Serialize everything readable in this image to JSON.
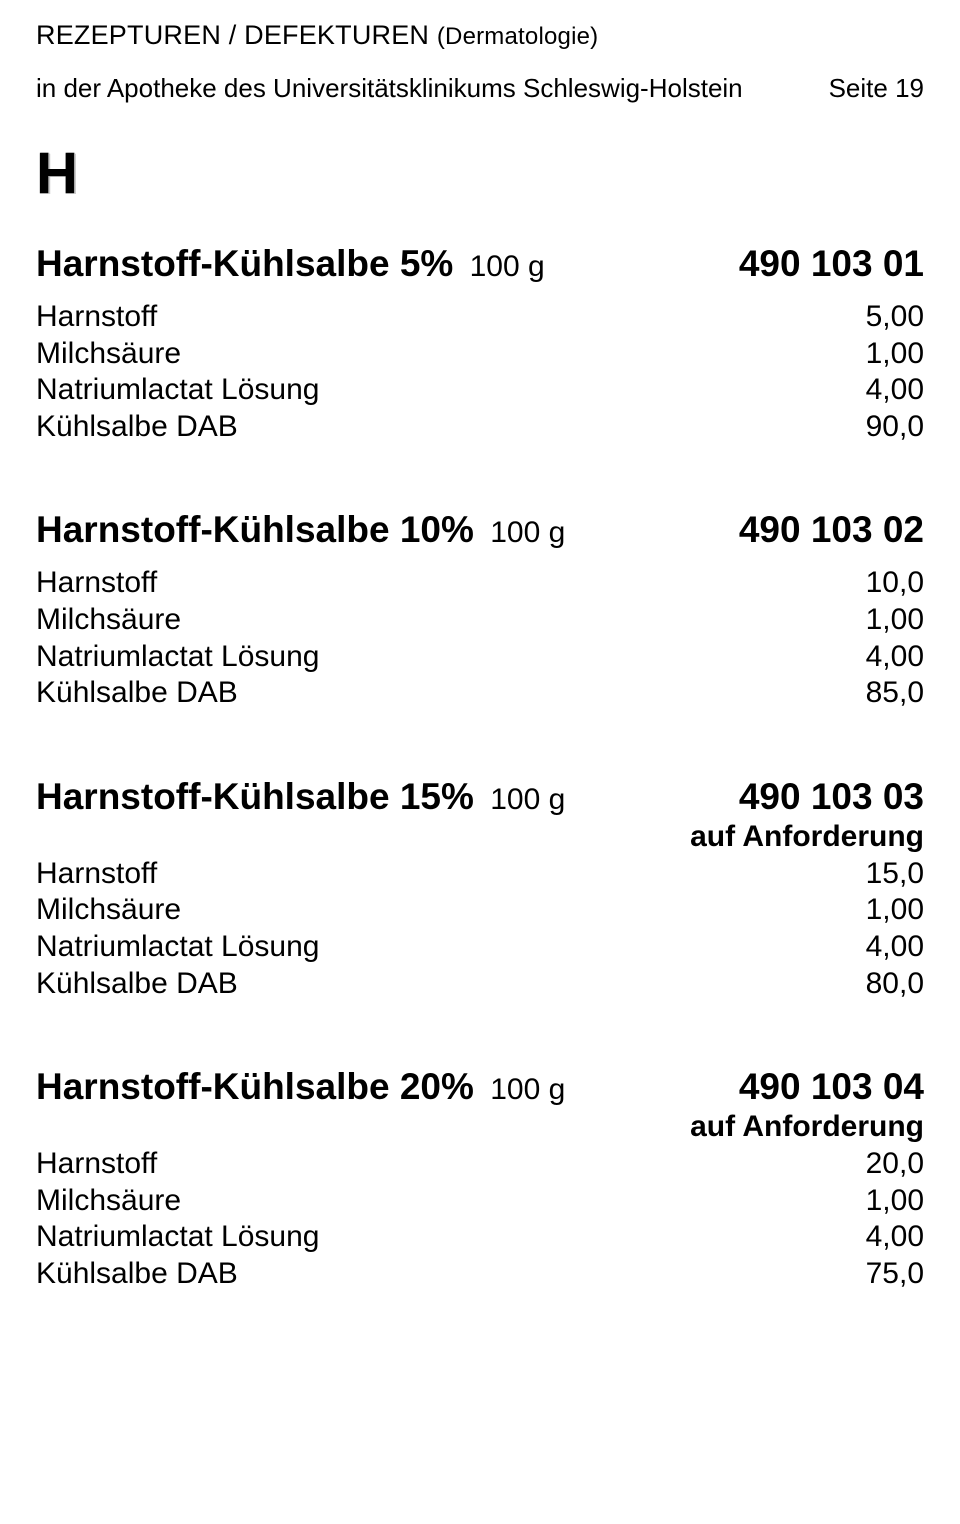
{
  "header": {
    "title_main": "REZEPTUREN / DEFEKTUREN",
    "title_paren": "(Dermatologie)",
    "subtitle": "in der Apotheke des Universitätsklinikums Schleswig-Holstein",
    "page_label": "Seite 19"
  },
  "section_letter": "H",
  "recipes": [
    {
      "title": "Harnstoff-Kühlsalbe 5%",
      "qty": "100 g",
      "code": "490 103 01",
      "note": "",
      "ingredients": [
        {
          "name": "Harnstoff",
          "value": "5,00"
        },
        {
          "name": "Milchsäure",
          "value": "1,00"
        },
        {
          "name": "Natriumlactat Lösung",
          "value": "4,00"
        },
        {
          "name": "Kühlsalbe DAB",
          "value": "90,0"
        }
      ]
    },
    {
      "title": "Harnstoff-Kühlsalbe 10%",
      "qty": "100 g",
      "code": "490 103 02",
      "note": "",
      "ingredients": [
        {
          "name": "Harnstoff",
          "value": "10,0"
        },
        {
          "name": "Milchsäure",
          "value": "1,00"
        },
        {
          "name": "Natriumlactat Lösung",
          "value": "4,00"
        },
        {
          "name": "Kühlsalbe DAB",
          "value": "85,0"
        }
      ]
    },
    {
      "title": "Harnstoff-Kühlsalbe 15%",
      "qty": "100 g",
      "code": "490 103 03",
      "note": "auf Anforderung",
      "ingredients": [
        {
          "name": "Harnstoff",
          "value": "15,0"
        },
        {
          "name": "Milchsäure",
          "value": "1,00"
        },
        {
          "name": "Natriumlactat Lösung",
          "value": "4,00"
        },
        {
          "name": "Kühlsalbe DAB",
          "value": "80,0"
        }
      ]
    },
    {
      "title": "Harnstoff-Kühlsalbe 20%",
      "qty": "100 g",
      "code": "490 103 04",
      "note": "auf Anforderung",
      "ingredients": [
        {
          "name": "Harnstoff",
          "value": "20,0"
        },
        {
          "name": "Milchsäure",
          "value": "1,00"
        },
        {
          "name": "Natriumlactat Lösung",
          "value": "4,00"
        },
        {
          "name": "Kühlsalbe DAB",
          "value": "75,0"
        }
      ]
    }
  ],
  "style": {
    "text_color": "#000000",
    "background_color": "#ffffff",
    "title_fontsize_pt": 28,
    "body_fontsize_pt": 22
  }
}
